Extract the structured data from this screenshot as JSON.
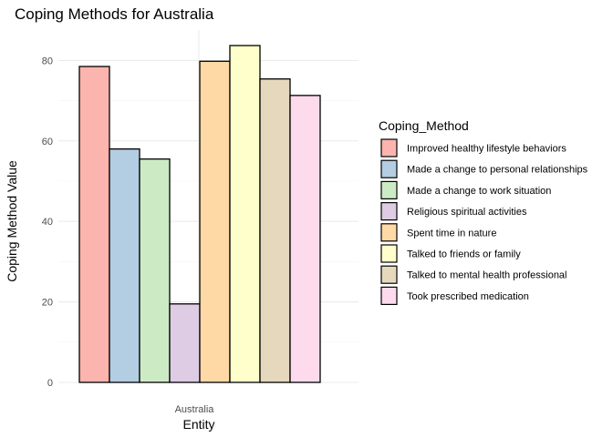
{
  "chart_data": {
    "type": "bar",
    "title": "Coping Methods for Australia",
    "xlabel": "Entity",
    "ylabel": "Coping Method Value",
    "categories": [
      "Australia"
    ],
    "ylim": [
      0,
      84
    ],
    "yticks": [
      0,
      20,
      40,
      60,
      80
    ],
    "grid": true,
    "legend": {
      "title": "Coping_Method",
      "position": "right"
    },
    "series": [
      {
        "name": "Improved healthy lifestyle behaviors",
        "values": [
          78.5
        ],
        "color": "#fbb4ae"
      },
      {
        "name": "Made a change to personal relationships",
        "values": [
          58.0
        ],
        "color": "#b3cde3"
      },
      {
        "name": "Made a change to work situation",
        "values": [
          55.5
        ],
        "color": "#ccebc5"
      },
      {
        "name": "Religious spiritual activities",
        "values": [
          19.5
        ],
        "color": "#decbe4"
      },
      {
        "name": "Spent time in nature",
        "values": [
          79.8
        ],
        "color": "#fed9a6"
      },
      {
        "name": "Talked to friends or family",
        "values": [
          83.7
        ],
        "color": "#ffffcc"
      },
      {
        "name": "Talked to mental health professional",
        "values": [
          75.4
        ],
        "color": "#e5d8bd"
      },
      {
        "name": "Took prescribed medication",
        "values": [
          71.3
        ],
        "color": "#fddaec"
      }
    ]
  }
}
